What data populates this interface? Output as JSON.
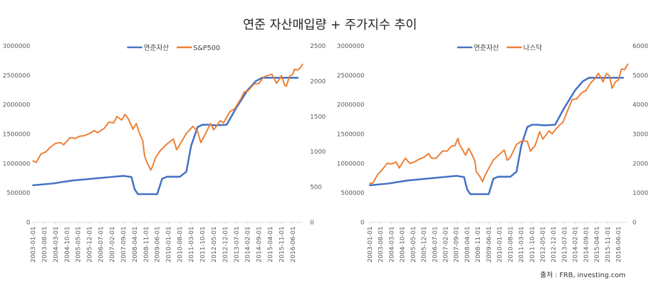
{
  "title": "연준 자산매입량 + 주가지수 추이",
  "source": "출처 : FRB, investing.com",
  "colors": {
    "fed": "#4472C4",
    "index": "#ED7D31",
    "axis": "#D9D9D9",
    "text": "#595959"
  },
  "x_labels": [
    "2003-01-01",
    "2003-08-01",
    "2004-03-01",
    "2004-10-01",
    "2005-05-01",
    "2005-12-01",
    "2006-07-01",
    "2007-02-01",
    "2007-09-01",
    "2008-04-01",
    "2008-11-01",
    "2009-06-01",
    "2010-01-01",
    "2010-08-01",
    "2011-03-01",
    "2011-10-01",
    "2012-05-01",
    "2012-12-01",
    "2013-07-01",
    "2014-02-01",
    "2014-09-01",
    "2015-04-01",
    "2015-11-01",
    "2016-06-01"
  ],
  "chart_data": [
    {
      "type": "line",
      "series": [
        {
          "name": "연준자산",
          "axis": "left",
          "points": [
            [
              "2003-01",
              630000
            ],
            [
              "2004-01",
              660000
            ],
            [
              "2005-01",
              710000
            ],
            [
              "2006-01",
              740000
            ],
            [
              "2007-01",
              770000
            ],
            [
              "2007-09",
              790000
            ],
            [
              "2008-02",
              770000
            ],
            [
              "2008-04",
              560000
            ],
            [
              "2008-06",
              480000
            ],
            [
              "2009-01",
              480000
            ],
            [
              "2009-06",
              480000
            ],
            [
              "2009-09",
              740000
            ],
            [
              "2009-12",
              775000
            ],
            [
              "2010-08",
              775000
            ],
            [
              "2010-12",
              860000
            ],
            [
              "2011-03",
              1300000
            ],
            [
              "2011-07",
              1620000
            ],
            [
              "2011-10",
              1660000
            ],
            [
              "2012-01",
              1660000
            ],
            [
              "2012-06",
              1650000
            ],
            [
              "2013-01",
              1660000
            ],
            [
              "2013-07",
              1950000
            ],
            [
              "2014-02",
              2250000
            ],
            [
              "2014-07",
              2400000
            ],
            [
              "2014-11",
              2460000
            ],
            [
              "2015-04",
              2460000
            ],
            [
              "2016-01",
              2460000
            ],
            [
              "2016-09",
              2460000
            ]
          ]
        },
        {
          "name": "S&P500",
          "axis": "right",
          "points": [
            [
              "2003-01",
              870
            ],
            [
              "2003-03",
              850
            ],
            [
              "2003-06",
              970
            ],
            [
              "2003-09",
              1000
            ],
            [
              "2003-12",
              1070
            ],
            [
              "2004-03",
              1120
            ],
            [
              "2004-06",
              1130
            ],
            [
              "2004-08",
              1100
            ],
            [
              "2004-12",
              1200
            ],
            [
              "2005-03",
              1190
            ],
            [
              "2005-06",
              1220
            ],
            [
              "2005-09",
              1230
            ],
            [
              "2005-12",
              1260
            ],
            [
              "2006-03",
              1300
            ],
            [
              "2006-05",
              1270
            ],
            [
              "2006-09",
              1330
            ],
            [
              "2006-12",
              1420
            ],
            [
              "2007-03",
              1410
            ],
            [
              "2007-05",
              1500
            ],
            [
              "2007-08",
              1450
            ],
            [
              "2007-10",
              1530
            ],
            [
              "2007-12",
              1470
            ],
            [
              "2008-03",
              1320
            ],
            [
              "2008-05",
              1400
            ],
            [
              "2008-07",
              1260
            ],
            [
              "2008-09",
              1160
            ],
            [
              "2008-10",
              960
            ],
            [
              "2008-11",
              880
            ],
            [
              "2009-02",
              740
            ],
            [
              "2009-03",
              790
            ],
            [
              "2009-05",
              920
            ],
            [
              "2009-08",
              1020
            ],
            [
              "2009-12",
              1110
            ],
            [
              "2010-04",
              1180
            ],
            [
              "2010-06",
              1030
            ],
            [
              "2010-08",
              1100
            ],
            [
              "2010-12",
              1260
            ],
            [
              "2011-04",
              1360
            ],
            [
              "2011-07",
              1290
            ],
            [
              "2011-09",
              1130
            ],
            [
              "2011-12",
              1260
            ],
            [
              "2012-03",
              1400
            ],
            [
              "2012-05",
              1310
            ],
            [
              "2012-09",
              1440
            ],
            [
              "2012-11",
              1410
            ],
            [
              "2013-03",
              1570
            ],
            [
              "2013-06",
              1610
            ],
            [
              "2013-10",
              1760
            ],
            [
              "2013-12",
              1850
            ],
            [
              "2014-02",
              1860
            ],
            [
              "2014-06",
              1960
            ],
            [
              "2014-09",
              1970
            ],
            [
              "2014-12",
              2060
            ],
            [
              "2015-05",
              2100
            ],
            [
              "2015-08",
              1970
            ],
            [
              "2015-11",
              2080
            ],
            [
              "2016-01",
              1940
            ],
            [
              "2016-02",
              1930
            ],
            [
              "2016-04",
              2070
            ],
            [
              "2016-06",
              2100
            ],
            [
              "2016-07",
              2170
            ],
            [
              "2016-09",
              2160
            ],
            [
              "2016-11",
              2200
            ],
            [
              "2016-12",
              2240
            ]
          ]
        }
      ],
      "yleft": {
        "min": 0,
        "max": 3000000,
        "ticks": [
          0,
          500000,
          1000000,
          1500000,
          2000000,
          2500000,
          3000000
        ]
      },
      "yright": {
        "min": 0,
        "max": 2500,
        "ticks": [
          0,
          500,
          1000,
          1500,
          2000,
          2500
        ]
      },
      "legend": "top-center"
    },
    {
      "type": "line",
      "series": [
        {
          "name": "연준자산",
          "axis": "left",
          "points": [
            [
              "2003-01",
              630000
            ],
            [
              "2004-01",
              660000
            ],
            [
              "2005-01",
              710000
            ],
            [
              "2006-01",
              740000
            ],
            [
              "2007-01",
              770000
            ],
            [
              "2007-09",
              790000
            ],
            [
              "2008-02",
              770000
            ],
            [
              "2008-04",
              560000
            ],
            [
              "2008-06",
              480000
            ],
            [
              "2009-01",
              480000
            ],
            [
              "2009-06",
              480000
            ],
            [
              "2009-09",
              740000
            ],
            [
              "2009-12",
              775000
            ],
            [
              "2010-08",
              775000
            ],
            [
              "2010-12",
              860000
            ],
            [
              "2011-03",
              1300000
            ],
            [
              "2011-07",
              1620000
            ],
            [
              "2011-10",
              1660000
            ],
            [
              "2012-01",
              1660000
            ],
            [
              "2012-06",
              1650000
            ],
            [
              "2013-01",
              1660000
            ],
            [
              "2013-07",
              1950000
            ],
            [
              "2014-02",
              2250000
            ],
            [
              "2014-07",
              2400000
            ],
            [
              "2014-11",
              2460000
            ],
            [
              "2015-04",
              2460000
            ],
            [
              "2016-01",
              2460000
            ],
            [
              "2016-09",
              2460000
            ]
          ]
        },
        {
          "name": "나스닥",
          "axis": "right",
          "points": [
            [
              "2003-01",
              1320
            ],
            [
              "2003-03",
              1340
            ],
            [
              "2003-06",
              1620
            ],
            [
              "2003-09",
              1790
            ],
            [
              "2003-12",
              2000
            ],
            [
              "2004-03",
              1990
            ],
            [
              "2004-06",
              2050
            ],
            [
              "2004-08",
              1850
            ],
            [
              "2004-12",
              2180
            ],
            [
              "2005-03",
              2000
            ],
            [
              "2005-06",
              2060
            ],
            [
              "2005-09",
              2150
            ],
            [
              "2005-12",
              2210
            ],
            [
              "2006-03",
              2340
            ],
            [
              "2006-05",
              2180
            ],
            [
              "2006-08",
              2180
            ],
            [
              "2006-12",
              2420
            ],
            [
              "2007-03",
              2420
            ],
            [
              "2007-06",
              2600
            ],
            [
              "2007-08",
              2600
            ],
            [
              "2007-10",
              2860
            ],
            [
              "2007-11",
              2660
            ],
            [
              "2008-03",
              2280
            ],
            [
              "2008-05",
              2520
            ],
            [
              "2008-07",
              2320
            ],
            [
              "2008-09",
              2090
            ],
            [
              "2008-10",
              1720
            ],
            [
              "2008-12",
              1580
            ],
            [
              "2009-02",
              1380
            ],
            [
              "2009-03",
              1530
            ],
            [
              "2009-06",
              1840
            ],
            [
              "2009-09",
              2120
            ],
            [
              "2009-12",
              2270
            ],
            [
              "2010-04",
              2460
            ],
            [
              "2010-06",
              2110
            ],
            [
              "2010-08",
              2210
            ],
            [
              "2010-12",
              2650
            ],
            [
              "2011-04",
              2780
            ],
            [
              "2011-07",
              2750
            ],
            [
              "2011-09",
              2420
            ],
            [
              "2011-12",
              2610
            ],
            [
              "2012-03",
              3080
            ],
            [
              "2012-05",
              2830
            ],
            [
              "2012-09",
              3110
            ],
            [
              "2012-11",
              3010
            ],
            [
              "2013-03",
              3270
            ],
            [
              "2013-06",
              3400
            ],
            [
              "2013-10",
              3920
            ],
            [
              "2013-12",
              4180
            ],
            [
              "2014-03",
              4200
            ],
            [
              "2014-06",
              4400
            ],
            [
              "2014-09",
              4490
            ],
            [
              "2014-12",
              4740
            ],
            [
              "2015-03",
              4900
            ],
            [
              "2015-05",
              5070
            ],
            [
              "2015-06",
              4990
            ],
            [
              "2015-08",
              4780
            ],
            [
              "2015-10",
              5050
            ],
            [
              "2015-12",
              5000
            ],
            [
              "2016-02",
              4560
            ],
            [
              "2016-04",
              4780
            ],
            [
              "2016-06",
              4840
            ],
            [
              "2016-08",
              5220
            ],
            [
              "2016-10",
              5190
            ],
            [
              "2016-12",
              5380
            ]
          ]
        }
      ],
      "yleft": {
        "min": 0,
        "max": 3000000,
        "ticks": [
          0,
          500000,
          1000000,
          1500000,
          2000000,
          2500000,
          3000000
        ]
      },
      "yright": {
        "min": 0,
        "max": 6000,
        "ticks": [
          0,
          1000,
          2000,
          3000,
          4000,
          5000,
          6000
        ]
      },
      "legend": "top-center"
    }
  ]
}
